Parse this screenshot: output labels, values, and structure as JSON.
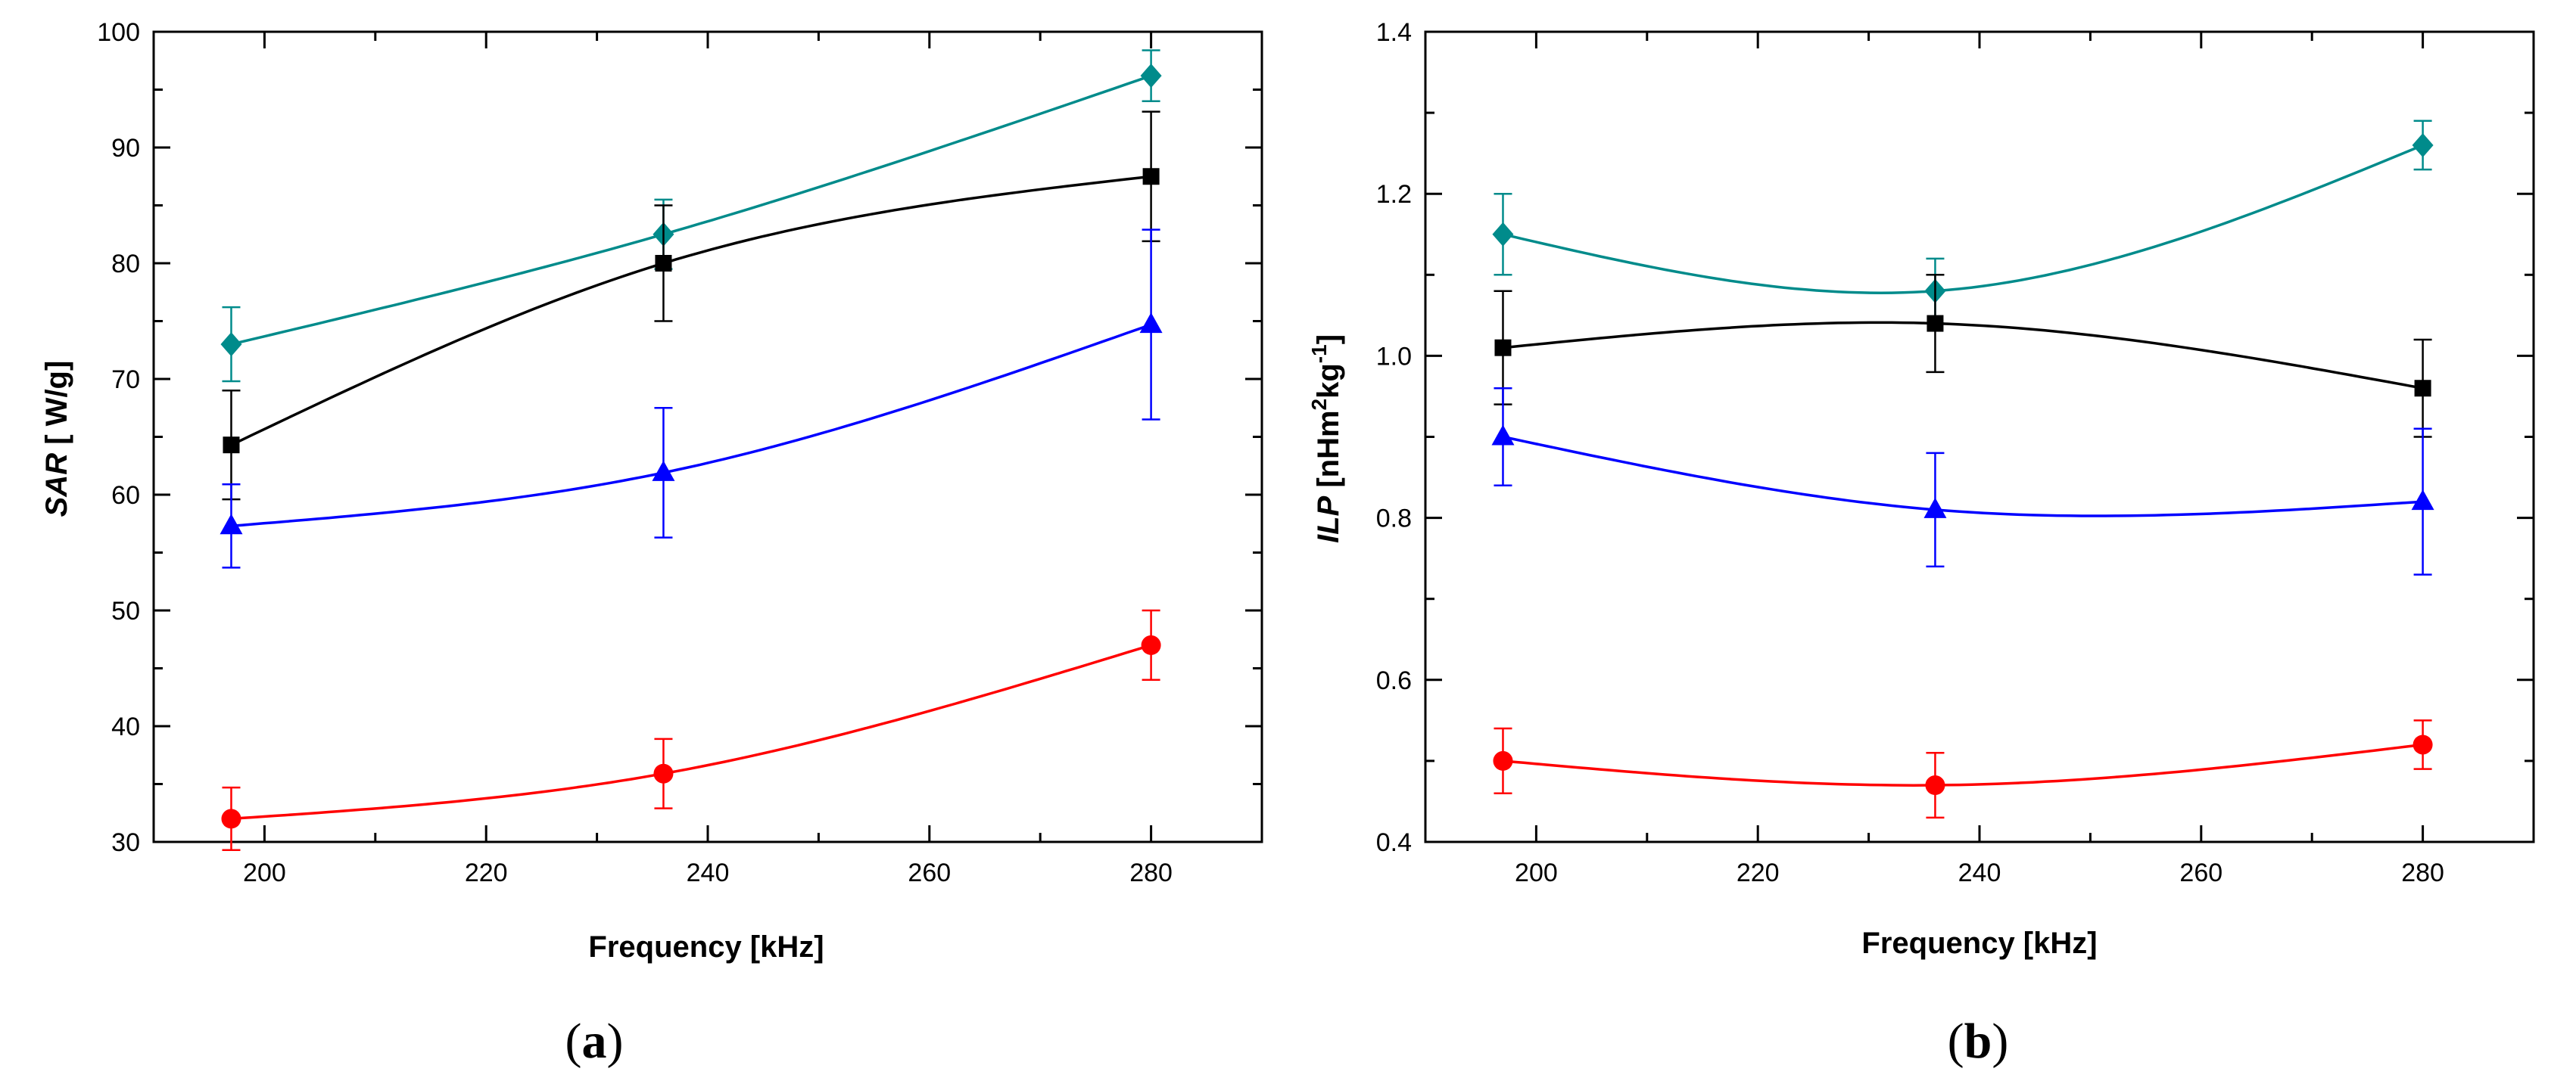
{
  "chart_data": [
    {
      "panel": "a",
      "type": "line",
      "title": "",
      "xlabel": "Frequency [kHz]",
      "ylabel": {
        "italic": "SAR",
        "rest": " [ W/g]"
      },
      "xlim": [
        190,
        290
      ],
      "ylim": [
        30,
        100
      ],
      "xticks": [
        200,
        220,
        240,
        260,
        280
      ],
      "yticks": [
        30,
        40,
        50,
        60,
        70,
        80,
        90,
        100
      ],
      "ytick_labels": [
        "30",
        "40",
        "50",
        "60",
        "70",
        "80",
        "90",
        "100"
      ],
      "x": [
        197,
        236,
        280
      ],
      "legend": "none",
      "series": [
        {
          "name": "teal-diamond",
          "color": "#008b8b",
          "marker": "diamond",
          "values": [
            73,
            82.5,
            96.2
          ],
          "errors": [
            3.2,
            3.0,
            2.2
          ]
        },
        {
          "name": "black-square",
          "color": "#000000",
          "marker": "square",
          "values": [
            64.3,
            80,
            87.5
          ],
          "errors": [
            4.7,
            5.0,
            5.6
          ]
        },
        {
          "name": "blue-triangle",
          "color": "#0000ff",
          "marker": "triangle",
          "values": [
            57.3,
            61.9,
            74.7
          ],
          "errors": [
            3.6,
            5.6,
            8.2
          ]
        },
        {
          "name": "red-circle",
          "color": "#ff0000",
          "marker": "circle",
          "values": [
            32,
            35.9,
            47
          ],
          "errors": [
            2.7,
            3.0,
            3.0
          ]
        }
      ]
    },
    {
      "panel": "b",
      "type": "line",
      "title": "",
      "xlabel": "Frequency [kHz]",
      "ylabel": {
        "italic": "ILP",
        "rest": " [nHm",
        "sup1": "2",
        "mid": "kg",
        "sup2": "-1",
        "end": "]"
      },
      "xlim": [
        190,
        290
      ],
      "ylim": [
        0.4,
        1.4
      ],
      "xticks": [
        200,
        220,
        240,
        260,
        280
      ],
      "yticks": [
        0.4,
        0.6,
        0.8,
        1.0,
        1.2,
        1.4
      ],
      "ytick_labels": [
        "0.4",
        "0.6",
        "0.8",
        "1.0",
        "1.2",
        "1.4"
      ],
      "x": [
        197,
        236,
        280
      ],
      "legend": "none",
      "series": [
        {
          "name": "teal-diamond",
          "color": "#008b8b",
          "marker": "diamond",
          "values": [
            1.15,
            1.08,
            1.26
          ],
          "errors": [
            0.05,
            0.04,
            0.03
          ]
        },
        {
          "name": "black-square",
          "color": "#000000",
          "marker": "square",
          "values": [
            1.01,
            1.04,
            0.96
          ],
          "errors": [
            0.07,
            0.06,
            0.06
          ]
        },
        {
          "name": "blue-triangle",
          "color": "#0000ff",
          "marker": "triangle",
          "values": [
            0.9,
            0.81,
            0.82
          ],
          "errors": [
            0.06,
            0.07,
            0.09
          ]
        },
        {
          "name": "red-circle",
          "color": "#ff0000",
          "marker": "circle",
          "values": [
            0.5,
            0.47,
            0.52
          ],
          "errors": [
            0.04,
            0.04,
            0.03
          ]
        }
      ]
    }
  ],
  "captions": {
    "a": {
      "open": "(",
      "letter": "a",
      "close": ")"
    },
    "b": {
      "open": "(",
      "letter": "b",
      "close": ")"
    }
  }
}
